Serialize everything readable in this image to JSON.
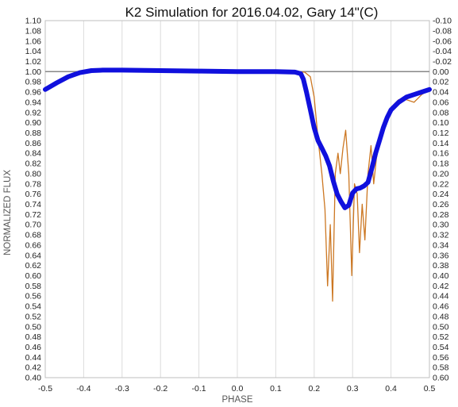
{
  "chart_data": {
    "type": "line",
    "title": "K2 Simulation for 2016.04.02, Gary 14\"(C)",
    "xlabel": "PHASE",
    "ylabel": "NORMALIZED FLUX",
    "xlim": [
      -0.5,
      0.5
    ],
    "ylim": [
      0.4,
      1.1
    ],
    "y2lim": [
      0.6,
      -0.1
    ],
    "x_ticks": [
      "-0.5",
      "-0.4",
      "-0.3",
      "-0.2",
      "-0.1",
      "0.0",
      "0.1",
      "0.2",
      "0.3",
      "0.4",
      "0.5"
    ],
    "y_ticks": [
      "1.10",
      "1.08",
      "1.06",
      "1.04",
      "1.02",
      "1.00",
      "0.98",
      "0.96",
      "0.94",
      "0.92",
      "0.90",
      "0.88",
      "0.86",
      "0.84",
      "0.82",
      "0.80",
      "0.78",
      "0.76",
      "0.74",
      "0.72",
      "0.70",
      "0.68",
      "0.66",
      "0.64",
      "0.62",
      "0.60",
      "0.58",
      "0.56",
      "0.54",
      "0.52",
      "0.50",
      "0.48",
      "0.46",
      "0.44",
      "0.42",
      "0.40"
    ],
    "y2_ticks": [
      "-0.10",
      "-0.08",
      "-0.06",
      "-0.04",
      "-0.02",
      "0.00",
      "0.02",
      "0.04",
      "0.06",
      "0.08",
      "0.10",
      "0.12",
      "0.14",
      "0.16",
      "0.18",
      "0.20",
      "0.22",
      "0.24",
      "0.26",
      "0.28",
      "0.30",
      "0.32",
      "0.34",
      "0.36",
      "0.38",
      "0.40",
      "0.42",
      "0.44",
      "0.46",
      "0.48",
      "0.50",
      "0.52",
      "0.54",
      "0.56",
      "0.58",
      "0.60"
    ],
    "grid": "vertical",
    "reference_line": 1.0,
    "series": [
      {
        "color": "#cc7722",
        "x": [
          -0.4,
          -0.3,
          -0.2,
          -0.1,
          0.0,
          0.1,
          0.175,
          0.19,
          0.2,
          0.21,
          0.22,
          0.228,
          0.235,
          0.242,
          0.248,
          0.255,
          0.262,
          0.268,
          0.275,
          0.282,
          0.29,
          0.298,
          0.305,
          0.312,
          0.318,
          0.325,
          0.332,
          0.34,
          0.348,
          0.355,
          0.362,
          0.37,
          0.38,
          0.39,
          0.4,
          0.42,
          0.44,
          0.46,
          0.48,
          0.5
        ],
        "values": [
          1.002,
          1.004,
          1.003,
          1.001,
          1.0,
          1.0,
          0.999,
          0.99,
          0.95,
          0.87,
          0.8,
          0.73,
          0.58,
          0.7,
          0.55,
          0.8,
          0.84,
          0.8,
          0.85,
          0.885,
          0.8,
          0.6,
          0.78,
          0.76,
          0.645,
          0.74,
          0.67,
          0.8,
          0.855,
          0.78,
          0.83,
          0.86,
          0.88,
          0.91,
          0.93,
          0.945,
          0.945,
          0.94,
          0.955,
          0.965
        ]
      },
      {
        "color": "#1010dd",
        "x": [
          -0.5,
          -0.47,
          -0.44,
          -0.41,
          -0.38,
          -0.35,
          -0.3,
          -0.2,
          -0.1,
          0.0,
          0.1,
          0.15,
          0.165,
          0.172,
          0.18,
          0.19,
          0.2,
          0.21,
          0.22,
          0.23,
          0.24,
          0.25,
          0.26,
          0.27,
          0.28,
          0.29,
          0.3,
          0.31,
          0.32,
          0.33,
          0.34,
          0.35,
          0.36,
          0.37,
          0.38,
          0.39,
          0.4,
          0.42,
          0.44,
          0.46,
          0.48,
          0.5
        ],
        "values": [
          0.965,
          0.978,
          0.99,
          0.998,
          1.002,
          1.003,
          1.003,
          1.002,
          1.001,
          1.0,
          1.0,
          0.999,
          0.996,
          0.985,
          0.96,
          0.925,
          0.89,
          0.865,
          0.85,
          0.835,
          0.815,
          0.785,
          0.76,
          0.745,
          0.733,
          0.738,
          0.762,
          0.77,
          0.772,
          0.776,
          0.783,
          0.81,
          0.84,
          0.865,
          0.89,
          0.91,
          0.925,
          0.94,
          0.95,
          0.955,
          0.96,
          0.965
        ]
      }
    ]
  }
}
